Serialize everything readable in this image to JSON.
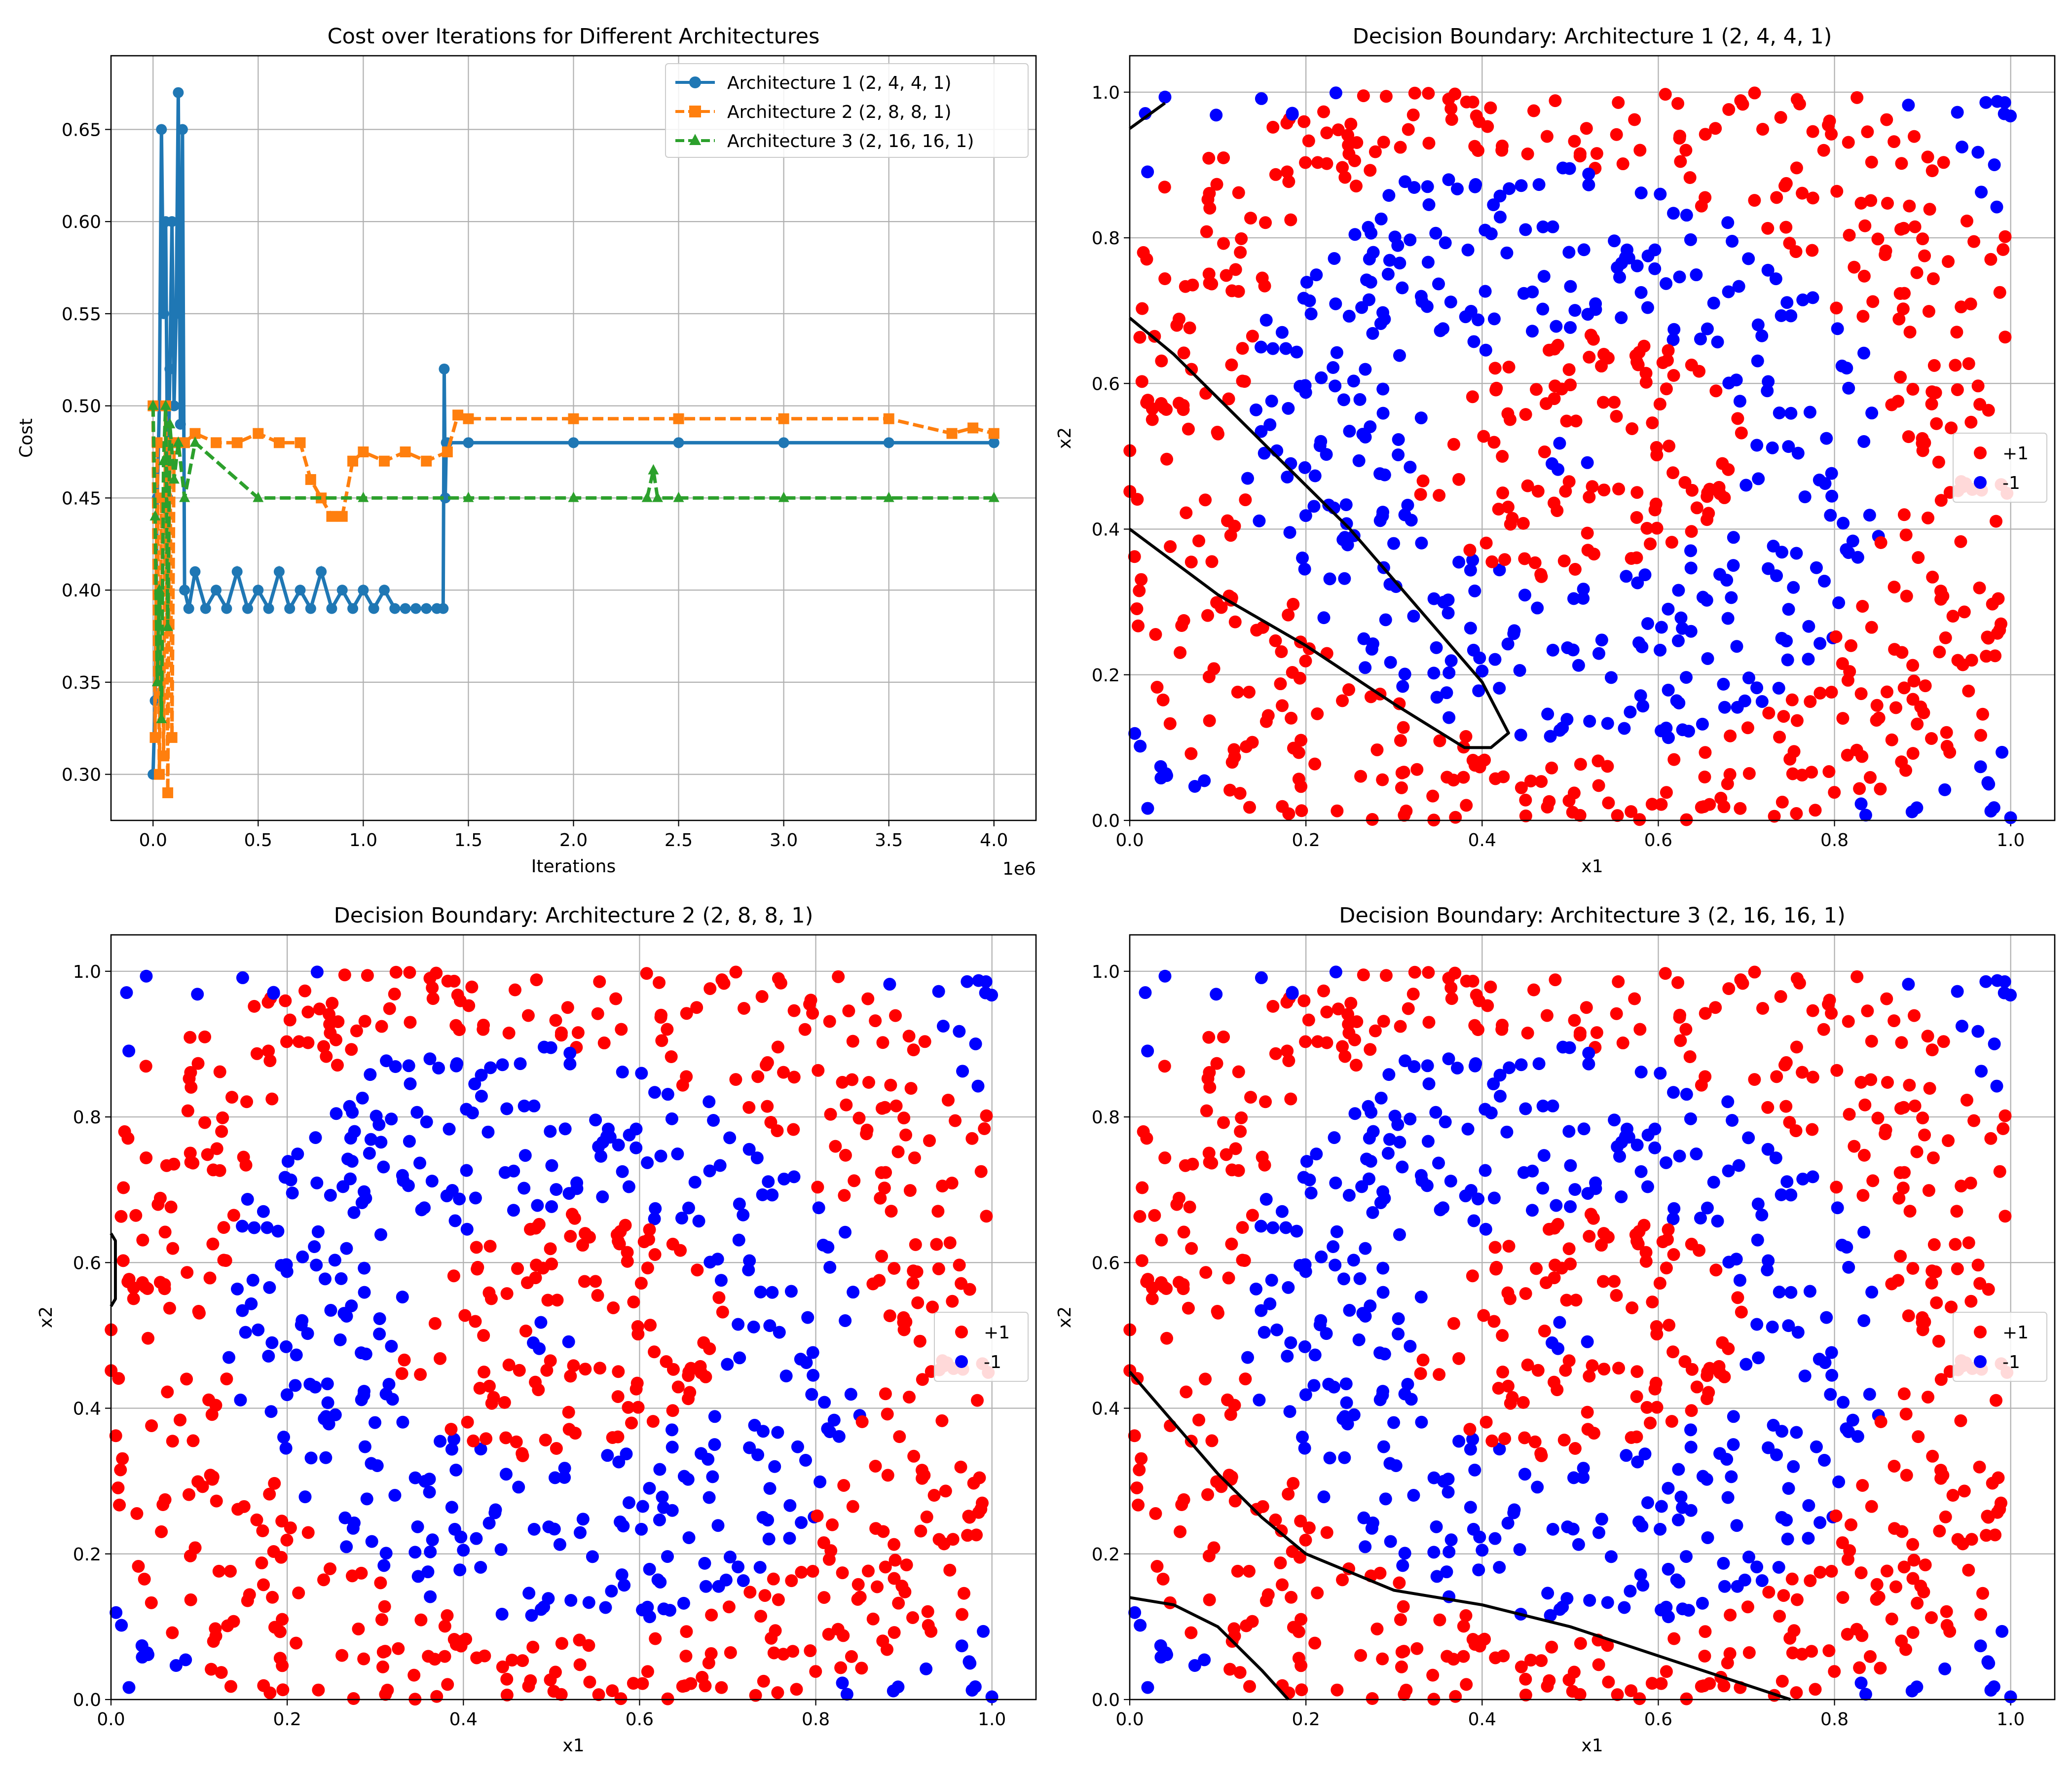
{
  "figure": {
    "background": "#ffffff"
  },
  "chart_data": [
    {
      "type": "line",
      "title": "Cost over Iterations for Different Architectures",
      "xlabel": "Iterations",
      "ylabel": "Cost",
      "x_offset_text": "1e6",
      "xlim": [
        -0.2,
        4.2
      ],
      "ylim": [
        0.275,
        0.69
      ],
      "xticks": [
        0.0,
        0.5,
        1.0,
        1.5,
        2.0,
        2.5,
        3.0,
        3.5,
        4.0
      ],
      "xtick_labels": [
        "0.0",
        "0.5",
        "1.0",
        "1.5",
        "2.0",
        "2.5",
        "3.0",
        "3.5",
        "4.0"
      ],
      "yticks": [
        0.3,
        0.35,
        0.4,
        0.45,
        0.5,
        0.55,
        0.6,
        0.65
      ],
      "ytick_labels": [
        "0.30",
        "0.35",
        "0.40",
        "0.45",
        "0.50",
        "0.55",
        "0.60",
        "0.65"
      ],
      "grid": true,
      "legend_position": "top-right",
      "series": [
        {
          "name": "Architecture 1 (2, 4, 4, 1)",
          "color": "#1f77b4",
          "marker": "circle",
          "linestyle": "solid",
          "x": [
            0.0,
            0.01,
            0.02,
            0.03,
            0.04,
            0.05,
            0.06,
            0.07,
            0.08,
            0.09,
            0.1,
            0.11,
            0.12,
            0.13,
            0.14,
            0.15,
            0.17,
            0.2,
            0.25,
            0.3,
            0.35,
            0.4,
            0.45,
            0.5,
            0.55,
            0.6,
            0.65,
            0.7,
            0.75,
            0.8,
            0.85,
            0.9,
            0.95,
            1.0,
            1.05,
            1.1,
            1.15,
            1.2,
            1.25,
            1.3,
            1.35,
            1.38,
            1.385,
            1.39,
            1.395,
            1.4,
            1.5,
            2.0,
            2.5,
            3.0,
            3.5,
            4.0
          ],
          "y": [
            0.3,
            0.34,
            0.45,
            0.5,
            0.65,
            0.55,
            0.6,
            0.45,
            0.52,
            0.6,
            0.5,
            0.55,
            0.67,
            0.49,
            0.65,
            0.4,
            0.39,
            0.41,
            0.39,
            0.4,
            0.39,
            0.41,
            0.39,
            0.4,
            0.39,
            0.41,
            0.39,
            0.4,
            0.39,
            0.41,
            0.39,
            0.4,
            0.39,
            0.4,
            0.39,
            0.4,
            0.39,
            0.39,
            0.39,
            0.39,
            0.39,
            0.39,
            0.52,
            0.45,
            0.48,
            0.48,
            0.48,
            0.48,
            0.48,
            0.48,
            0.48,
            0.48
          ]
        },
        {
          "name": "Architecture 2 (2, 8, 8, 1)",
          "color": "#ff7f0e",
          "marker": "square",
          "linestyle": "dashed",
          "x": [
            0.0,
            0.01,
            0.02,
            0.03,
            0.04,
            0.05,
            0.06,
            0.07,
            0.08,
            0.09,
            0.1,
            0.15,
            0.2,
            0.3,
            0.4,
            0.5,
            0.6,
            0.7,
            0.75,
            0.8,
            0.85,
            0.9,
            0.95,
            1.0,
            1.1,
            1.2,
            1.3,
            1.4,
            1.45,
            1.5,
            2.0,
            2.5,
            3.0,
            3.5,
            3.8,
            3.9,
            4.0
          ],
          "y": [
            0.5,
            0.32,
            0.48,
            0.3,
            0.45,
            0.31,
            0.5,
            0.29,
            0.48,
            0.32,
            0.48,
            0.48,
            0.485,
            0.48,
            0.48,
            0.485,
            0.48,
            0.48,
            0.46,
            0.45,
            0.44,
            0.44,
            0.47,
            0.475,
            0.47,
            0.475,
            0.47,
            0.475,
            0.495,
            0.493,
            0.493,
            0.493,
            0.493,
            0.493,
            0.485,
            0.488,
            0.485
          ]
        },
        {
          "name": "Architecture 3 (2, 16, 16, 1)",
          "color": "#2ca02c",
          "marker": "triangle",
          "linestyle": "dashed",
          "x": [
            0.0,
            0.01,
            0.02,
            0.03,
            0.04,
            0.05,
            0.06,
            0.07,
            0.08,
            0.1,
            0.12,
            0.15,
            0.2,
            0.5,
            1.0,
            1.5,
            2.0,
            2.35,
            2.38,
            2.4,
            2.5,
            3.0,
            3.5,
            4.0
          ],
          "y": [
            0.5,
            0.44,
            0.35,
            0.4,
            0.33,
            0.47,
            0.5,
            0.38,
            0.49,
            0.46,
            0.48,
            0.45,
            0.48,
            0.45,
            0.45,
            0.45,
            0.45,
            0.45,
            0.465,
            0.45,
            0.45,
            0.45,
            0.45,
            0.45
          ]
        }
      ]
    },
    {
      "type": "scatter",
      "title": "Decision Boundary: Architecture 1 (2, 4, 4, 1)",
      "xlabel": "x1",
      "ylabel": "x2",
      "xlim": [
        0.0,
        1.05
      ],
      "ylim": [
        0.0,
        1.05
      ],
      "xticks": [
        0.0,
        0.2,
        0.4,
        0.6,
        0.8,
        1.0
      ],
      "xtick_labels": [
        "0.0",
        "0.2",
        "0.4",
        "0.6",
        "0.8",
        "1.0"
      ],
      "yticks": [
        0.0,
        0.2,
        0.4,
        0.6,
        0.8,
        1.0
      ],
      "ytick_labels": [
        "0.0",
        "0.2",
        "0.4",
        "0.6",
        "0.8",
        "1.0"
      ],
      "grid": true,
      "legend_position": "center-right",
      "legend": [
        {
          "label": "+1",
          "color": "#ff0000"
        },
        {
          "label": "-1",
          "color": "#0000ff"
        }
      ],
      "boundaries": [
        {
          "color": "#000000",
          "x": [
            0.0,
            0.04
          ],
          "y": [
            0.95,
            0.985
          ]
        },
        {
          "color": "#000000",
          "x": [
            0.0,
            0.05,
            0.1,
            0.15,
            0.2,
            0.25,
            0.3,
            0.35,
            0.4,
            0.43,
            0.41,
            0.38,
            0.3,
            0.2,
            0.1,
            0.0
          ],
          "y": [
            0.69,
            0.64,
            0.58,
            0.52,
            0.46,
            0.4,
            0.33,
            0.26,
            0.19,
            0.12,
            0.1,
            0.1,
            0.16,
            0.24,
            0.31,
            0.4
          ]
        }
      ]
    },
    {
      "type": "scatter",
      "title": "Decision Boundary: Architecture 2 (2, 8, 8, 1)",
      "xlabel": "x1",
      "ylabel": "x2",
      "xlim": [
        0.0,
        1.05
      ],
      "ylim": [
        0.0,
        1.05
      ],
      "xticks": [
        0.0,
        0.2,
        0.4,
        0.6,
        0.8,
        1.0
      ],
      "xtick_labels": [
        "0.0",
        "0.2",
        "0.4",
        "0.6",
        "0.8",
        "1.0"
      ],
      "yticks": [
        0.0,
        0.2,
        0.4,
        0.6,
        0.8,
        1.0
      ],
      "ytick_labels": [
        "0.0",
        "0.2",
        "0.4",
        "0.6",
        "0.8",
        "1.0"
      ],
      "grid": true,
      "legend_position": "center-right",
      "legend": [
        {
          "label": "+1",
          "color": "#ff0000"
        },
        {
          "label": "-1",
          "color": "#0000ff"
        }
      ],
      "boundaries": [
        {
          "color": "#000000",
          "x": [
            0.0,
            0.005,
            0.005,
            0.0
          ],
          "y": [
            0.64,
            0.63,
            0.55,
            0.54
          ]
        }
      ]
    },
    {
      "type": "scatter",
      "title": "Decision Boundary: Architecture 3 (2, 16, 16, 1)",
      "xlabel": "x1",
      "ylabel": "x2",
      "xlim": [
        0.0,
        1.05
      ],
      "ylim": [
        0.0,
        1.05
      ],
      "xticks": [
        0.0,
        0.2,
        0.4,
        0.6,
        0.8,
        1.0
      ],
      "xtick_labels": [
        "0.0",
        "0.2",
        "0.4",
        "0.6",
        "0.8",
        "1.0"
      ],
      "yticks": [
        0.0,
        0.2,
        0.4,
        0.6,
        0.8,
        1.0
      ],
      "ytick_labels": [
        "0.0",
        "0.2",
        "0.4",
        "0.6",
        "0.8",
        "1.0"
      ],
      "grid": true,
      "legend_position": "center-right",
      "legend": [
        {
          "label": "+1",
          "color": "#ff0000"
        },
        {
          "label": "-1",
          "color": "#0000ff"
        }
      ],
      "boundaries": [
        {
          "color": "#000000",
          "x": [
            0.0,
            0.05,
            0.1,
            0.15,
            0.2,
            0.3,
            0.4,
            0.5,
            0.6,
            0.7,
            0.75
          ],
          "y": [
            0.45,
            0.38,
            0.31,
            0.25,
            0.2,
            0.15,
            0.13,
            0.1,
            0.06,
            0.02,
            0.0
          ]
        },
        {
          "color": "#000000",
          "x": [
            0.0,
            0.05,
            0.1,
            0.15,
            0.18
          ],
          "y": [
            0.14,
            0.13,
            0.1,
            0.04,
            0.0
          ]
        }
      ]
    }
  ]
}
